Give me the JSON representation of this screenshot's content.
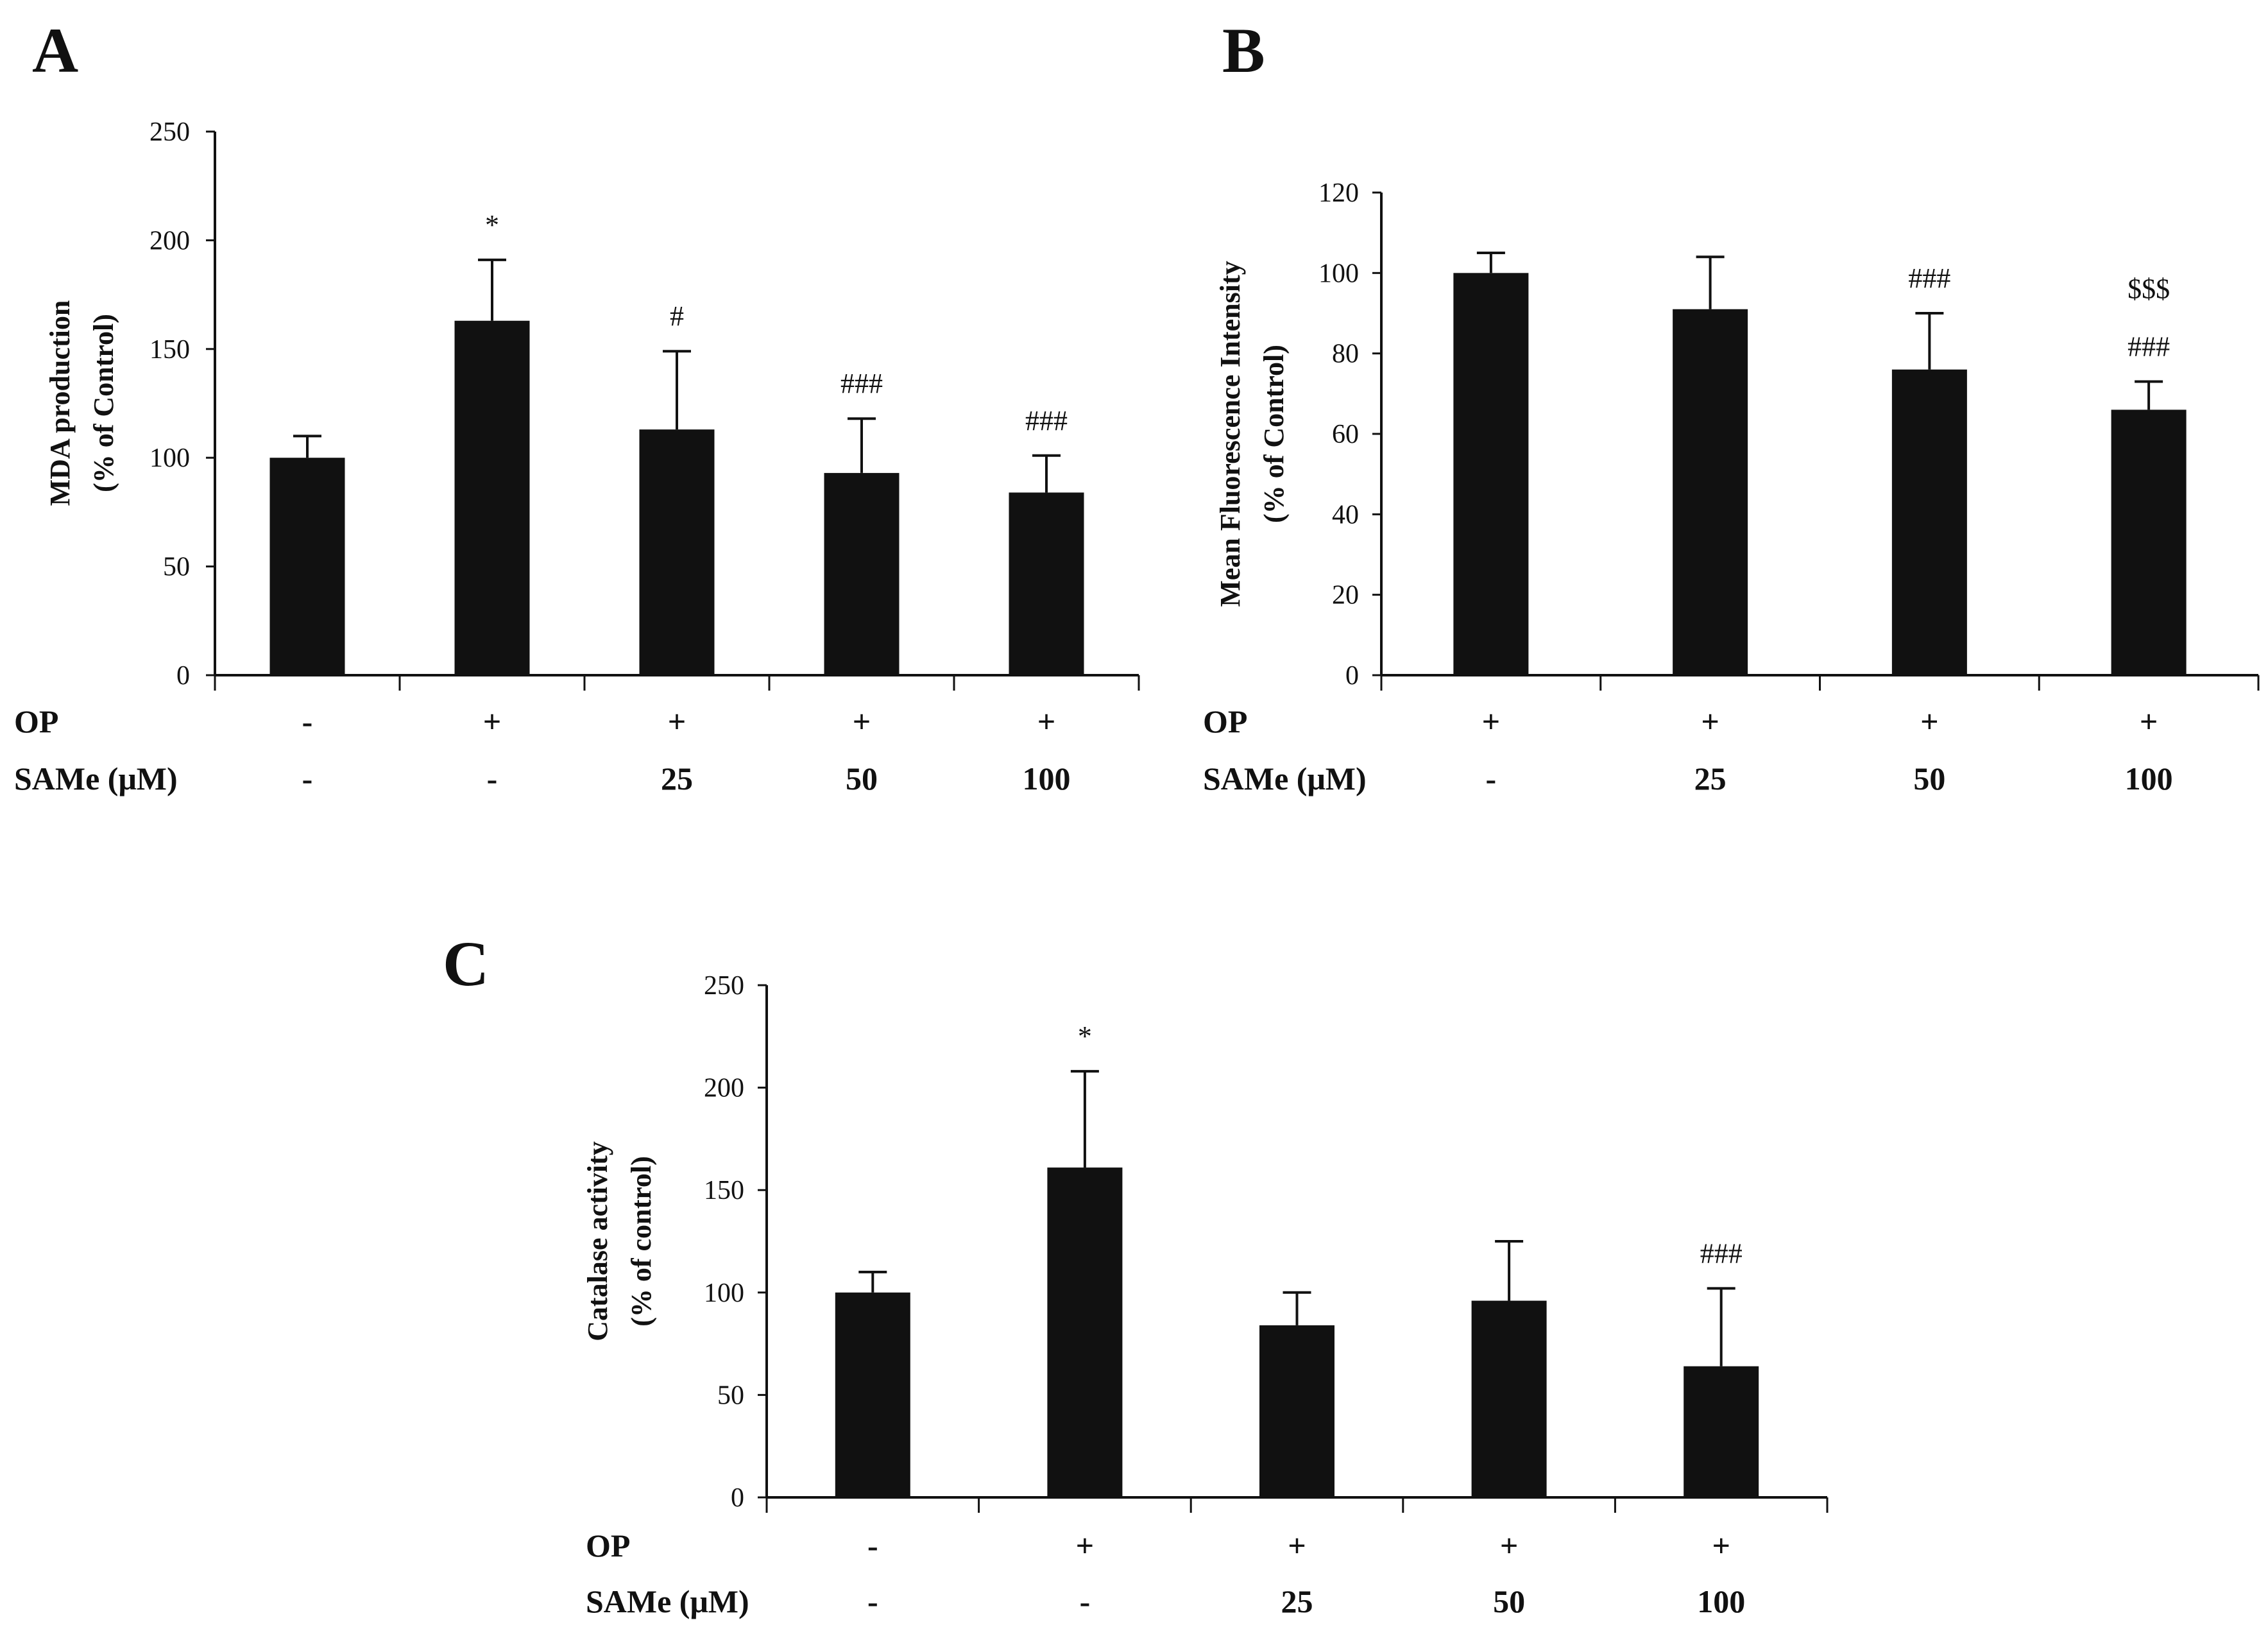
{
  "chart_data": [
    {
      "panel": "A",
      "type": "bar",
      "title": "",
      "ylabel_lines": [
        "MDA  production",
        "(% of Control)"
      ],
      "xlabel": "",
      "ylim": [
        0,
        250
      ],
      "yticks": [
        "0",
        "50",
        "100",
        "150",
        "200",
        "250"
      ],
      "values": [
        100,
        163,
        113,
        93,
        84
      ],
      "errors": [
        10,
        28,
        36,
        25,
        17
      ],
      "annotations": [
        [],
        [
          "*"
        ],
        [
          "#"
        ],
        [
          "###"
        ],
        [
          "###"
        ]
      ],
      "conditions": [
        {
          "label": "OP",
          "values": [
            "-",
            "+",
            "+",
            "+",
            "+"
          ]
        },
        {
          "label": "SAMe (μM)",
          "values": [
            "-",
            "-",
            "25",
            "50",
            "100"
          ]
        }
      ],
      "bar_color": "#111111"
    },
    {
      "panel": "B",
      "type": "bar",
      "title": "",
      "ylabel_lines": [
        "Mean Fluorescence Intensity",
        "(% of Control)"
      ],
      "xlabel": "",
      "ylim": [
        0,
        120
      ],
      "yticks": [
        "0",
        "20",
        "40",
        "60",
        "80",
        "100",
        "120"
      ],
      "values": [
        100,
        91,
        76,
        66
      ],
      "errors": [
        5,
        13,
        14,
        7
      ],
      "annotations": [
        [],
        [],
        [
          "###"
        ],
        [
          "###",
          "$$$"
        ]
      ],
      "conditions": [
        {
          "label": "OP",
          "values": [
            "+",
            "+",
            "+",
            "+"
          ]
        },
        {
          "label": "SAMe (μM)",
          "values": [
            "-",
            "25",
            "50",
            "100"
          ]
        }
      ],
      "bar_color": "#111111"
    },
    {
      "panel": "C",
      "type": "bar",
      "title": "",
      "ylabel_lines": [
        "Catalase activity",
        "(% of control)"
      ],
      "xlabel": "",
      "ylim": [
        0,
        250
      ],
      "yticks": [
        "0",
        "50",
        "100",
        "150",
        "200",
        "250"
      ],
      "values": [
        100,
        161,
        84,
        96,
        64
      ],
      "errors": [
        10,
        47,
        16,
        29,
        38
      ],
      "annotations": [
        [],
        [
          "*"
        ],
        [],
        [],
        [
          "###"
        ]
      ],
      "conditions": [
        {
          "label": "OP",
          "values": [
            "-",
            "+",
            "+",
            "+",
            "+"
          ]
        },
        {
          "label": "SAMe (μM)",
          "values": [
            "-",
            "-",
            "25",
            "50",
            "100"
          ]
        }
      ],
      "bar_color": "#111111"
    }
  ]
}
